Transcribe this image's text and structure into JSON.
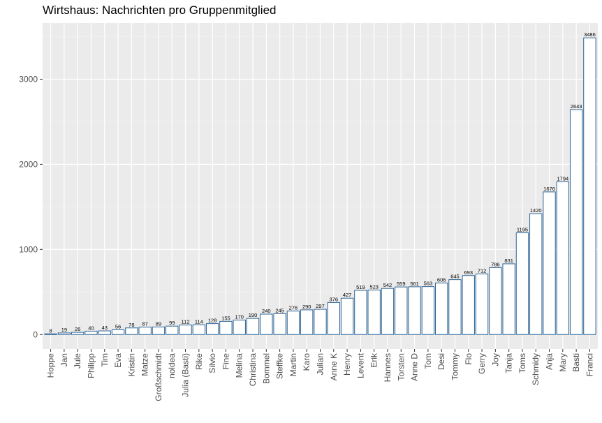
{
  "chart_data": {
    "type": "bar",
    "title": "Wirtshaus: Nachrichten pro Gruppenmitglied",
    "xlabel": "",
    "ylabel": "",
    "ylim": [
      -170,
      3660
    ],
    "y_ticks": [
      0,
      1000,
      2000,
      3000
    ],
    "grid": true,
    "legend": "none",
    "categories": [
      "Hoppe",
      "Jan",
      "Jule",
      "Philipp",
      "Tim",
      "Eva",
      "Kristin",
      "Matze",
      "Großschmidt",
      "noldea",
      "Julia (Basti)",
      "Rike",
      "Silvio",
      "Fine",
      "Melina",
      "Christina",
      "Bommel",
      "Steffke",
      "Martin",
      "Karo",
      "Julian",
      "Anne K",
      "Henry",
      "Levent",
      "Erik",
      "Hannes",
      "Torsten",
      "Anne D",
      "Tom",
      "Desi",
      "Tommy",
      "Flo",
      "Gerry",
      "Joy",
      "Tanja",
      "Toms",
      "Schmidy",
      "Anja",
      "Mary",
      "Basti",
      "Franci"
    ],
    "values": [
      8,
      19,
      26,
      40,
      43,
      56,
      78,
      87,
      89,
      99,
      112,
      114,
      128,
      155,
      170,
      190,
      240,
      245,
      276,
      290,
      297,
      376,
      427,
      519,
      523,
      542,
      559,
      561,
      563,
      606,
      645,
      693,
      712,
      786,
      831,
      1195,
      1420,
      1676,
      1794,
      2643,
      3486
    ],
    "colors": {
      "panel": "#ebebeb",
      "grid_major": "#ffffff",
      "grid_minor": "#f5f5f5",
      "bar_fill": "#ffffff",
      "bar_stroke": "#2c6496"
    }
  }
}
